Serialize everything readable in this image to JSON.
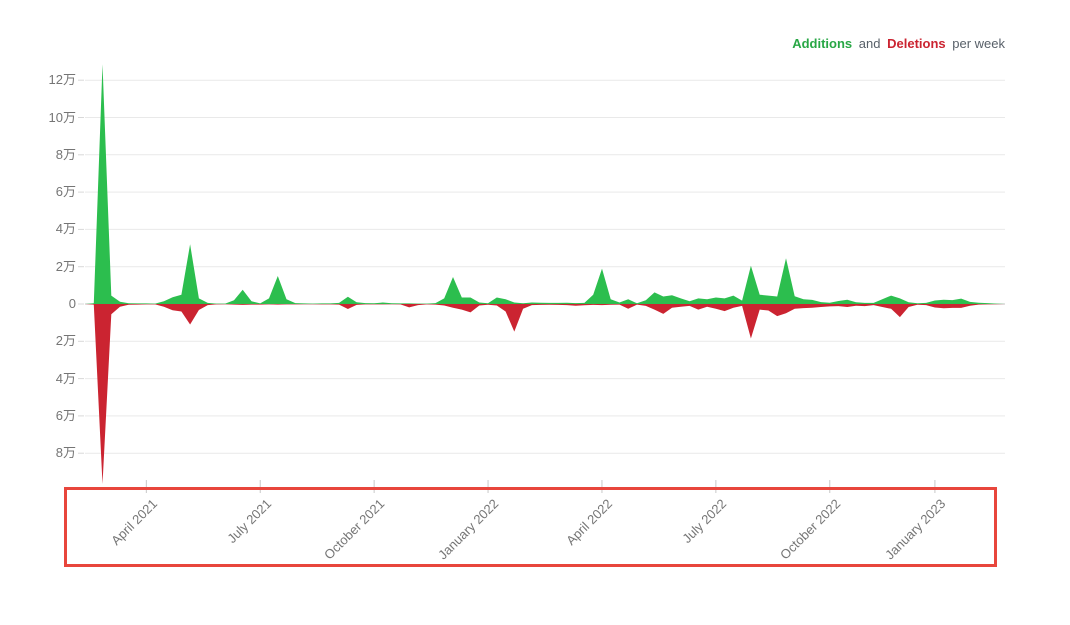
{
  "legend": {
    "additions": "Additions",
    "and": "and",
    "deletions": "Deletions",
    "per_week": "per week"
  },
  "colors": {
    "additions_area": "#2cbe4e",
    "deletions_area": "#cb2431",
    "legend_additions_text": "#28a745",
    "legend_deletions_text": "#cb2431",
    "legend_muted_text": "#586069",
    "grid_line": "#e9e9e9",
    "zero_line": "#c6c6c6",
    "axis_tick": "#c8c8c8",
    "axis_text": "#757575",
    "highlight_box": "#e8463c",
    "background": "#ffffff"
  },
  "chart_data": {
    "type": "area",
    "title": "Additions and Deletions per week",
    "legend_position": "top-right",
    "grid": true,
    "weeks": 106,
    "unit_note": "万 = 10,000 (y axis shown in units of 10k lines)",
    "y_axis": {
      "tick_values": [
        120000,
        100000,
        80000,
        60000,
        40000,
        20000,
        0,
        -20000,
        -40000,
        -60000,
        -80000
      ],
      "tick_labels": [
        "12万",
        "10万",
        "8万",
        "6万",
        "4万",
        "2万",
        "0",
        "2万",
        "4万",
        "6万",
        "8万"
      ],
      "range": [
        -100000,
        135000
      ]
    },
    "x_axis": {
      "tick_labels": [
        "April 2021",
        "July 2021",
        "October 2021",
        "January 2022",
        "April 2022",
        "July 2022",
        "October 2022",
        "January 2023"
      ],
      "tick_week_indices": [
        7,
        20,
        33,
        46,
        59,
        72,
        85,
        97
      ]
    },
    "series": [
      {
        "name": "Additions",
        "color": "#2cbe4e",
        "values": [
          0,
          400,
          128500,
          4500,
          1200,
          400,
          300,
          300,
          200,
          1500,
          3600,
          5000,
          32000,
          3000,
          600,
          200,
          200,
          2000,
          7600,
          1500,
          300,
          3000,
          15000,
          2500,
          500,
          300,
          200,
          300,
          300,
          600,
          3900,
          900,
          500,
          400,
          800,
          400,
          300,
          300,
          200,
          200,
          500,
          3000,
          14500,
          3500,
          3500,
          800,
          400,
          3500,
          2500,
          800,
          400,
          800,
          700,
          600,
          600,
          700,
          500,
          600,
          5000,
          19000,
          2500,
          800,
          2500,
          400,
          2000,
          6200,
          4000,
          4700,
          3000,
          1500,
          3000,
          2500,
          3500,
          3000,
          4500,
          1800,
          20500,
          5000,
          4500,
          4000,
          24500,
          4200,
          2600,
          2200,
          1000,
          700,
          1600,
          2300,
          900,
          600,
          600,
          2600,
          4500,
          3000,
          900,
          400,
          600,
          1900,
          2300,
          2100,
          2900,
          1100,
          700,
          500,
          200,
          0
        ]
      },
      {
        "name": "Deletions",
        "color": "#cb2431",
        "values": [
          0,
          -300,
          -96500,
          -5500,
          -1500,
          -400,
          -300,
          -200,
          -200,
          -1500,
          -3400,
          -4000,
          -11000,
          -3200,
          -600,
          -200,
          -100,
          -300,
          -500,
          -300,
          -300,
          -200,
          -300,
          -200,
          -200,
          -100,
          -100,
          -200,
          -200,
          -300,
          -2700,
          -500,
          -200,
          -200,
          -200,
          -100,
          -200,
          -1800,
          -600,
          -200,
          -300,
          -800,
          -2000,
          -3000,
          -4500,
          -800,
          -400,
          -800,
          -4000,
          -14800,
          -2500,
          -600,
          -500,
          -400,
          -500,
          -600,
          -900,
          -700,
          -500,
          -600,
          -400,
          -300,
          -2500,
          -300,
          -1000,
          -3000,
          -5300,
          -2000,
          -1500,
          -1000,
          -3000,
          -1500,
          -2500,
          -3800,
          -2000,
          -1000,
          -18500,
          -3000,
          -3500,
          -6500,
          -5000,
          -2600,
          -2200,
          -2000,
          -1600,
          -1300,
          -1100,
          -1600,
          -900,
          -1100,
          -600,
          -1600,
          -2600,
          -7000,
          -1600,
          -400,
          -600,
          -1900,
          -2300,
          -2100,
          -2100,
          -900,
          -300,
          -200,
          -100,
          0
        ]
      }
    ]
  },
  "annotation": {
    "shape": "rectangle",
    "color": "#e8463c",
    "encloses": "x-axis month labels"
  }
}
